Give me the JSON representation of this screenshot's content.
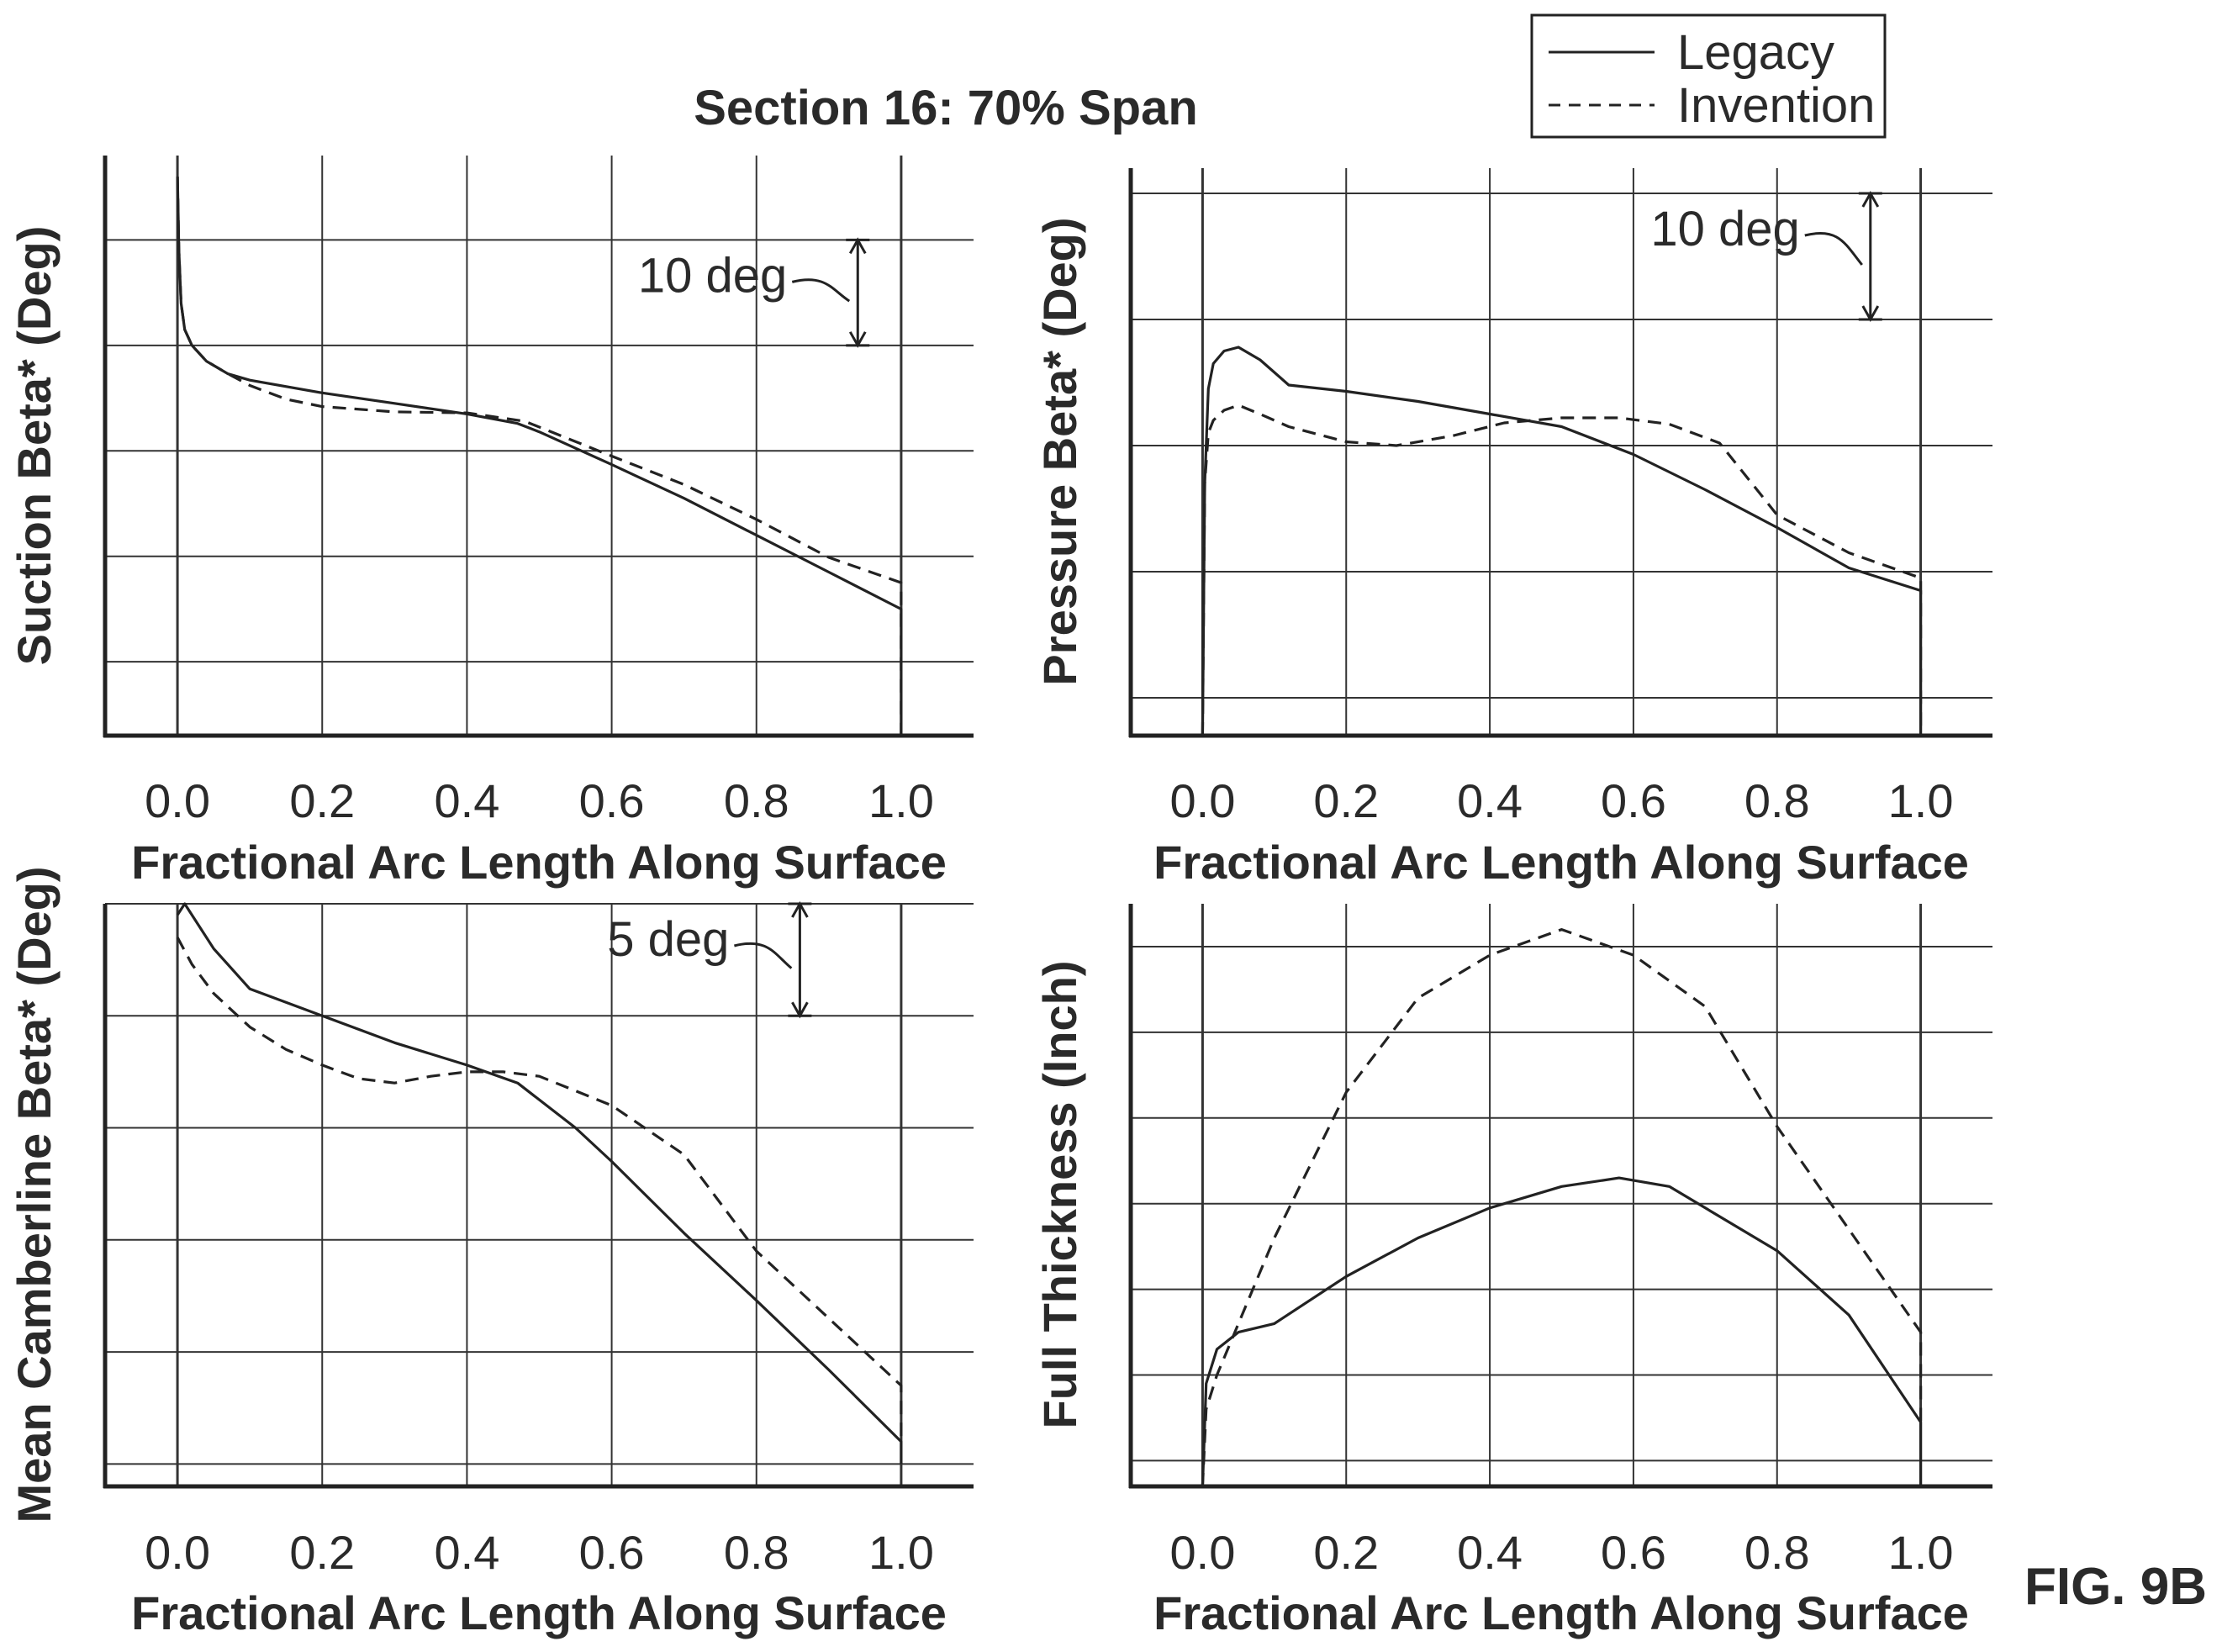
{
  "figure": {
    "title": "Section 16: 70% Span",
    "figure_label": "FIG. 9B",
    "legend": [
      {
        "label": "Legacy",
        "style": "solid"
      },
      {
        "label": "Invention",
        "style": "dashed"
      }
    ],
    "colors": {
      "line": "#222222",
      "grid": "#333333",
      "text": "#2a2a2a"
    }
  },
  "chart_data": [
    {
      "type": "line",
      "ylabel": "Suction Beta* (Deg)",
      "xlabel": "Fractional Arc Length Along Surface",
      "x_ticks": [
        "0.0",
        "0.2",
        "0.4",
        "0.6",
        "0.8",
        "1.0"
      ],
      "xlim": [
        -0.1,
        1.1
      ],
      "ylim": [
        0,
        55
      ],
      "y_gridlines": [
        7,
        17,
        27,
        37,
        47
      ],
      "grid": true,
      "scale_bar": {
        "label": "10 deg",
        "x": 0.94,
        "y_from": 37,
        "y_to": 47
      },
      "series": [
        {
          "name": "Legacy",
          "style": "solid",
          "x": [
            0,
            0.002,
            0.005,
            0.01,
            0.02,
            0.04,
            0.07,
            0.1,
            0.2,
            0.3,
            0.4,
            0.47,
            0.5,
            0.6,
            0.7,
            0.8,
            0.9,
            1.0,
            1.0
          ],
          "y": [
            53,
            46,
            41,
            38.5,
            37,
            35.5,
            34.3,
            33.7,
            32.5,
            31.5,
            30.5,
            29.6,
            28.8,
            25.7,
            22.5,
            19,
            15.5,
            12,
            0
          ]
        },
        {
          "name": "Invention",
          "style": "dashed",
          "x": [
            0,
            0.002,
            0.005,
            0.01,
            0.02,
            0.04,
            0.07,
            0.1,
            0.15,
            0.2,
            0.3,
            0.4,
            0.48,
            0.6,
            0.7,
            0.8,
            0.9,
            1.0,
            1.0
          ],
          "y": [
            53,
            46,
            41,
            38.5,
            37,
            35.5,
            34.3,
            33.2,
            31.9,
            31.2,
            30.7,
            30.6,
            29.8,
            26.5,
            23.8,
            20.5,
            16.9,
            14.5,
            0
          ]
        }
      ]
    },
    {
      "type": "line",
      "ylabel": "Pressure Beta* (Deg)",
      "xlabel": "Fractional Arc Length Along Surface",
      "x_ticks": [
        "0.0",
        "0.2",
        "0.4",
        "0.6",
        "0.8",
        "1.0"
      ],
      "xlim": [
        -0.1,
        1.1
      ],
      "ylim": [
        0,
        45
      ],
      "y_gridlines": [
        3,
        13,
        23,
        33,
        43
      ],
      "grid": true,
      "scale_bar": {
        "label": "10 deg",
        "x": 0.93,
        "y_from": 33,
        "y_to": 43
      },
      "series": [
        {
          "name": "Legacy",
          "style": "solid",
          "x": [
            0,
            0.003,
            0.008,
            0.015,
            0.03,
            0.05,
            0.08,
            0.12,
            0.2,
            0.3,
            0.4,
            0.5,
            0.6,
            0.7,
            0.8,
            0.9,
            1.0,
            1.0
          ],
          "y": [
            0,
            20,
            27.5,
            29.5,
            30.5,
            30.8,
            29.8,
            27.8,
            27.3,
            26.5,
            25.5,
            24.5,
            22.3,
            19.5,
            16.5,
            13.3,
            11.5,
            0
          ]
        },
        {
          "name": "Invention",
          "style": "dashed",
          "x": [
            0,
            0.003,
            0.008,
            0.015,
            0.03,
            0.05,
            0.08,
            0.12,
            0.2,
            0.27,
            0.35,
            0.42,
            0.5,
            0.58,
            0.65,
            0.72,
            0.8,
            0.9,
            1.0,
            1.0
          ],
          "y": [
            0,
            20,
            24,
            25,
            25.8,
            26.2,
            25.5,
            24.5,
            23.3,
            23,
            23.8,
            24.8,
            25.2,
            25.2,
            24.7,
            23.2,
            17.5,
            14.5,
            12.5,
            0
          ]
        }
      ]
    },
    {
      "type": "line",
      "ylabel": "Mean Camberline Beta* (Deg)",
      "xlabel": "Fractional Arc Length Along Surface",
      "x_ticks": [
        "0.0",
        "0.2",
        "0.4",
        "0.6",
        "0.8",
        "1.0"
      ],
      "xlim": [
        -0.1,
        1.1
      ],
      "ylim": [
        0,
        26
      ],
      "y_gridlines": [
        1,
        6,
        11,
        16,
        21,
        26
      ],
      "grid": true,
      "scale_bar": {
        "label": "5 deg",
        "x": 0.86,
        "y_from": 21,
        "y_to": 26
      },
      "series": [
        {
          "name": "Legacy",
          "style": "solid",
          "x": [
            0,
            0.01,
            0.05,
            0.1,
            0.2,
            0.3,
            0.4,
            0.47,
            0.55,
            0.6,
            0.7,
            0.8,
            0.9,
            1.0,
            1.0
          ],
          "y": [
            25.5,
            26,
            24,
            22.2,
            21,
            19.8,
            18.8,
            18,
            16,
            14.5,
            11.3,
            8.3,
            5.2,
            2,
            1
          ]
        },
        {
          "name": "Invention",
          "style": "dashed",
          "x": [
            0,
            0.02,
            0.05,
            0.1,
            0.15,
            0.2,
            0.25,
            0.3,
            0.35,
            0.4,
            0.45,
            0.5,
            0.6,
            0.7,
            0.8,
            0.9,
            1.0,
            1.0
          ],
          "y": [
            24.5,
            23.3,
            22,
            20.5,
            19.5,
            18.8,
            18.2,
            18,
            18.3,
            18.5,
            18.5,
            18.3,
            17,
            14.8,
            10.5,
            7.5,
            4.5,
            2
          ]
        }
      ]
    },
    {
      "type": "line",
      "ylabel": "Full Thickness (Inch)",
      "xlabel": "Fractional Arc Length Along Surface",
      "x_ticks": [
        "0.0",
        "0.2",
        "0.4",
        "0.6",
        "0.8",
        "1.0"
      ],
      "xlim": [
        -0.1,
        1.1
      ],
      "ylim": [
        0,
        6.8
      ],
      "y_gridlines": [
        0.3,
        1.3,
        2.3,
        3.3,
        4.3,
        5.3,
        6.3
      ],
      "grid": true,
      "series": [
        {
          "name": "Legacy",
          "style": "solid",
          "x": [
            0,
            0.005,
            0.02,
            0.05,
            0.1,
            0.2,
            0.3,
            0.4,
            0.5,
            0.58,
            0.65,
            0.8,
            0.9,
            1.0,
            1.0
          ],
          "y": [
            0,
            1.2,
            1.6,
            1.8,
            1.9,
            2.45,
            2.9,
            3.25,
            3.5,
            3.6,
            3.5,
            2.75,
            2,
            0.75,
            0
          ]
        },
        {
          "name": "Invention",
          "style": "dashed",
          "x": [
            0,
            0.005,
            0.02,
            0.05,
            0.1,
            0.2,
            0.3,
            0.4,
            0.5,
            0.6,
            0.7,
            0.8,
            0.9,
            1.0,
            1.0
          ],
          "y": [
            0,
            0.9,
            1.3,
            1.9,
            2.9,
            4.6,
            5.7,
            6.2,
            6.5,
            6.2,
            5.6,
            4.2,
            3,
            1.8,
            0.7
          ]
        }
      ]
    }
  ]
}
